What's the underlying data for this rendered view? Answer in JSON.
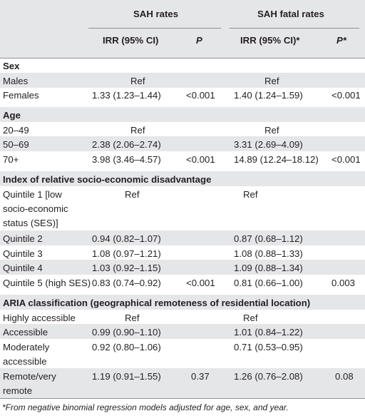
{
  "header": {
    "group1": "SAH rates",
    "group2": "SAH fatal rates",
    "irr1": "IRR (95% CI)",
    "p1": "P",
    "irr2": "IRR (95% CI)*",
    "p2": "P*"
  },
  "sections": {
    "sex": "Sex",
    "age": "Age",
    "ses": "Index of relative socio-economic disadvantage",
    "aria": "ARIA classification (geographical remoteness of residential location)"
  },
  "rows": {
    "males": {
      "label": "Males",
      "irr1": "Ref",
      "irr2": "Ref"
    },
    "females": {
      "label": "Females",
      "irr1": "1.33 (1.23–1.44)",
      "p1": "<0.001",
      "irr2": "1.40 (1.24–1.59)",
      "p2": "<0.001"
    },
    "age2049": {
      "label": "20–49",
      "irr1": "Ref",
      "irr2": "Ref"
    },
    "age5069": {
      "label": "50–69",
      "irr1": "2.38 (2.06–2.74)",
      "irr2": "3.31 (2.69–4.09)"
    },
    "age70": {
      "label": "70+",
      "irr1": "3.98 (3.46–4.57)",
      "p1": "<0.001",
      "irr2": "14.89 (12.24–18.12)",
      "p2": "<0.001"
    },
    "q1": {
      "label_lines": [
        "Quintile 1 [low",
        "socio-economic",
        "status (SES)]"
      ],
      "irr1": "Ref",
      "irr2": "Ref"
    },
    "q2": {
      "label": "Quintile 2",
      "irr1": "0.94 (0.82–1.07)",
      "irr2": "0.87 (0.68–1.12)"
    },
    "q3": {
      "label": "Quintile 3",
      "irr1": "1.08 (0.97–1.21)",
      "irr2": "1.08 (0.88–1.33)"
    },
    "q4": {
      "label": "Quintile 4",
      "irr1": "1.03 (0.92–1.15)",
      "irr2": "1.09 (0.88–1.34)"
    },
    "q5": {
      "label": "Quintile 5 (high SES)",
      "irr1": "0.83 (0.74–0.92)",
      "p1": "<0.001",
      "irr2": "0.81 (0.66–1.00)",
      "p2": "0.003"
    },
    "highly": {
      "label": "Highly accessible",
      "irr1": "Ref",
      "irr2": "Ref"
    },
    "accessible": {
      "label": "Accessible",
      "irr1": "0.99 (0.90–1.10)",
      "irr2": "1.01 (0.84–1.22)"
    },
    "moderately": {
      "label_lines": [
        "Moderately",
        "accessible"
      ],
      "irr1": "0.92 (0.80–1.06)",
      "irr2": "0.71 (0.53–0.95)"
    },
    "remote": {
      "label_lines": [
        "Remote/very",
        "remote"
      ],
      "irr1": "1.19 (0.91–1.55)",
      "p1": "0.37",
      "irr2": "1.26 (0.76–2.08)",
      "p2": "0.08"
    }
  },
  "footnote": "*From negative binomial regression models adjusted for age, sex, and year."
}
